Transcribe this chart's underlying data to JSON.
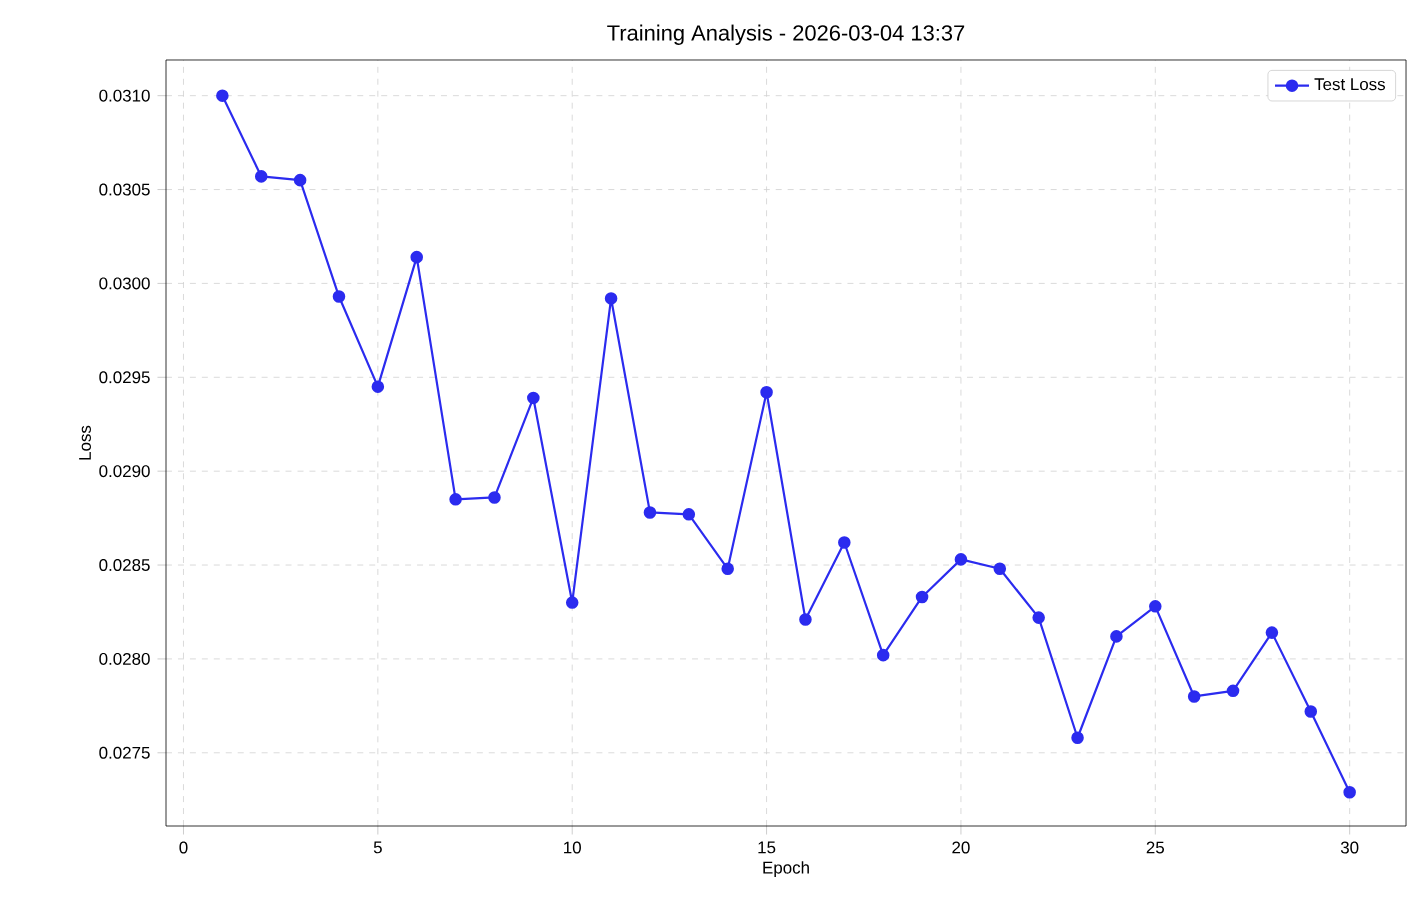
{
  "chart_data": {
    "type": "line",
    "title": "Training Analysis - 2026-03-04 13:37",
    "xlabel": "Epoch",
    "ylabel": "Loss",
    "x": [
      1,
      2,
      3,
      4,
      5,
      6,
      7,
      8,
      9,
      10,
      11,
      12,
      13,
      14,
      15,
      16,
      17,
      18,
      19,
      20,
      21,
      22,
      23,
      24,
      25,
      26,
      27,
      28,
      29,
      30
    ],
    "series": [
      {
        "name": "Test Loss",
        "color": "#2b2bef",
        "values": [
          0.031,
          0.03057,
          0.03055,
          0.02993,
          0.02945,
          0.03014,
          0.02885,
          0.02886,
          0.02939,
          0.0283,
          0.02992,
          0.02878,
          0.02877,
          0.02848,
          0.02942,
          0.02821,
          0.02862,
          0.02802,
          0.02833,
          0.02853,
          0.02848,
          0.02822,
          0.02758,
          0.02812,
          0.02828,
          0.0278,
          0.02783,
          0.02814,
          0.02772,
          0.02729
        ]
      }
    ],
    "xlim": [
      -0.45,
      31.45
    ],
    "ylim": [
      0.02711,
      0.03119
    ],
    "xticks": [
      0,
      5,
      10,
      15,
      20,
      25,
      30
    ],
    "yticks": [
      {
        "value": 0.0275,
        "label": "0.0275"
      },
      {
        "value": 0.028,
        "label": "0.0280"
      },
      {
        "value": 0.0285,
        "label": "0.0285"
      },
      {
        "value": 0.029,
        "label": "0.0290"
      },
      {
        "value": 0.0295,
        "label": "0.0295"
      },
      {
        "value": 0.03,
        "label": "0.0300"
      },
      {
        "value": 0.0305,
        "label": "0.0305"
      },
      {
        "value": 0.031,
        "label": "0.0310"
      }
    ],
    "grid": true,
    "legend": "top right",
    "marker": "circle",
    "line_style": "solid"
  }
}
